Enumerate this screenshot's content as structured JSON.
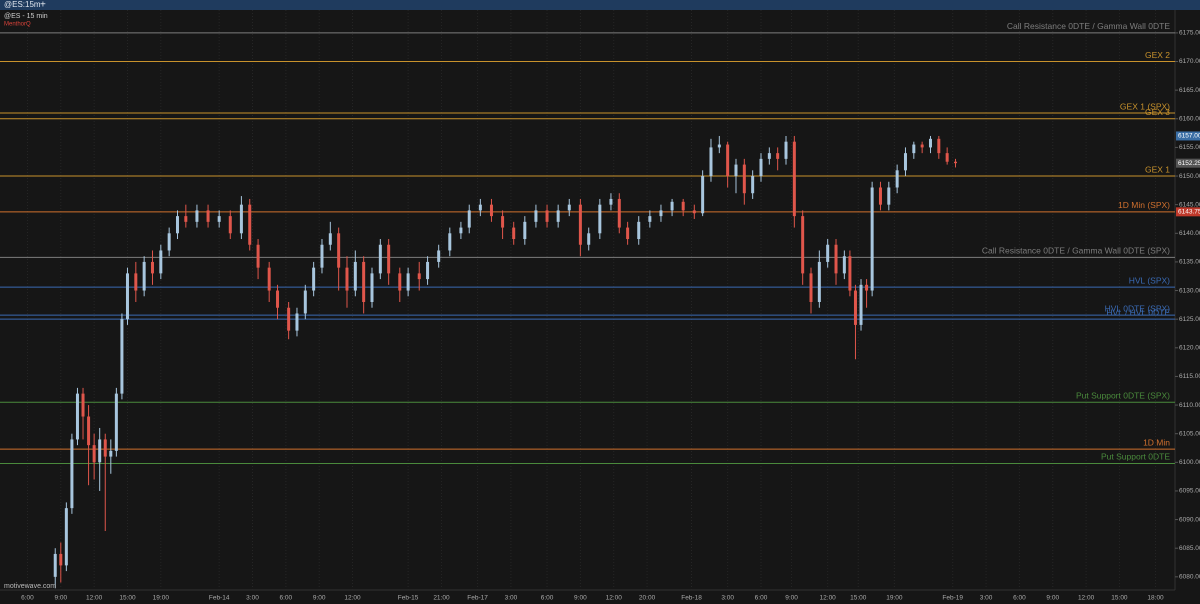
{
  "tab": "@ES:15m",
  "tab_add": "+",
  "chart_data": {
    "type": "candlestick",
    "title": "@ES - 15 min",
    "subtitle": "MenthorQ",
    "watermark": "motivewave.com",
    "up_color": "#a8c6de",
    "down_color": "#e0564b",
    "xlim": [
      0,
      420
    ],
    "ylim": [
      6077.7,
      6179
    ],
    "yticks": [
      {
        "value": 6080,
        "label": "6080.00"
      },
      {
        "value": 6085,
        "label": "6085.00"
      },
      {
        "value": 6090,
        "label": "6090.00"
      },
      {
        "value": 6095,
        "label": "6095.00"
      },
      {
        "value": 6100,
        "label": "6100.00"
      },
      {
        "value": 6105,
        "label": "6105.00"
      },
      {
        "value": 6110,
        "label": "6110.00"
      },
      {
        "value": 6115,
        "label": "6115.00"
      },
      {
        "value": 6120,
        "label": "6120.00"
      },
      {
        "value": 6125,
        "label": "6125.00"
      },
      {
        "value": 6130,
        "label": "6130.00"
      },
      {
        "value": 6135,
        "label": "6135.00"
      },
      {
        "value": 6140,
        "label": "6140.00"
      },
      {
        "value": 6145,
        "label": "6145.00"
      },
      {
        "value": 6150,
        "label": "6150.00"
      },
      {
        "value": 6155,
        "label": "6155.00"
      },
      {
        "value": 6160,
        "label": "6160.00"
      },
      {
        "value": 6165,
        "label": "6165.00"
      },
      {
        "value": 6170,
        "label": "6170.00"
      },
      {
        "value": 6175,
        "label": "6175.00"
      }
    ],
    "xticks": [
      {
        "value": 7,
        "label": "6:00"
      },
      {
        "value": 19,
        "label": "9:00"
      },
      {
        "value": 31,
        "label": "12:00"
      },
      {
        "value": 43,
        "label": "15:00"
      },
      {
        "value": 55,
        "label": "19:00"
      },
      {
        "value": 76,
        "label": "Feb-14"
      },
      {
        "value": 88,
        "label": "3:00"
      },
      {
        "value": 100,
        "label": "6:00"
      },
      {
        "value": 112,
        "label": "9:00"
      },
      {
        "value": 124,
        "label": "12:00"
      },
      {
        "value": 144,
        "label": "Feb-15"
      },
      {
        "value": 156,
        "label": "21:00"
      },
      {
        "value": 169,
        "label": "Feb-17"
      },
      {
        "value": 181,
        "label": "3:00"
      },
      {
        "value": 194,
        "label": "6:00"
      },
      {
        "value": 206,
        "label": "9:00"
      },
      {
        "value": 218,
        "label": "12:00"
      },
      {
        "value": 230,
        "label": "20:00"
      },
      {
        "value": 246,
        "label": "Feb-18"
      },
      {
        "value": 259,
        "label": "3:00"
      },
      {
        "value": 271,
        "label": "6:00"
      },
      {
        "value": 282,
        "label": "9:00"
      },
      {
        "value": 295,
        "label": "12:00"
      },
      {
        "value": 306,
        "label": "15:00"
      },
      {
        "value": 319,
        "label": "19:00"
      },
      {
        "value": 340,
        "label": "Feb-19"
      },
      {
        "value": 352,
        "label": "3:00"
      },
      {
        "value": 364,
        "label": "6:00"
      },
      {
        "value": 376,
        "label": "9:00"
      },
      {
        "value": 388,
        "label": "12:00"
      },
      {
        "value": 400,
        "label": "15:00"
      },
      {
        "value": 413,
        "label": "18:00"
      }
    ],
    "x": [
      17,
      19,
      21,
      23,
      25,
      27,
      29,
      31,
      33,
      35,
      37,
      39,
      41,
      43,
      46,
      49,
      52,
      55,
      58,
      61,
      64,
      68,
      72,
      76,
      80,
      84,
      87,
      90,
      94,
      97,
      101,
      104,
      107,
      110,
      113,
      116,
      119,
      122,
      125,
      128,
      131,
      134,
      137,
      141,
      144,
      148,
      151,
      155,
      159,
      163,
      166,
      170,
      174,
      178,
      182,
      186,
      190,
      194,
      198,
      202,
      206,
      209,
      213,
      217,
      220,
      223,
      227,
      231,
      235,
      239,
      243,
      247,
      250,
      253,
      256,
      259,
      262,
      265,
      268,
      271,
      274,
      277,
      280,
      283,
      286,
      289,
      292,
      295,
      298,
      301,
      303,
      305,
      307,
      309,
      311,
      314,
      317,
      320,
      323,
      326,
      329,
      332,
      335,
      338,
      341
    ],
    "open": [
      6080,
      6084,
      6082,
      6092,
      6104,
      6112,
      6108,
      6103,
      6100,
      6104,
      6101,
      6102,
      6112,
      6125,
      6133,
      6130,
      6135,
      6133,
      6137,
      6140,
      6143,
      6142,
      6144,
      6142,
      6143,
      6140,
      6145,
      6138,
      6134,
      6130,
      6127,
      6123,
      6126,
      6130,
      6134,
      6138,
      6140,
      6134,
      6130,
      6135,
      6128,
      6133,
      6138,
      6133,
      6130,
      6133,
      6132,
      6135,
      6137,
      6140,
      6141,
      6144,
      6145,
      6143,
      6141,
      6139,
      6142,
      6144,
      6142,
      6144,
      6145,
      6138,
      6140,
      6145,
      6146,
      6141,
      6139,
      6142,
      6143,
      6144,
      6145.5,
      6144,
      6143.5,
      6150,
      6155,
      6155.5,
      6150,
      6152,
      6147,
      6150,
      6153,
      6154,
      6153,
      6156,
      6143,
      6133,
      6128,
      6135,
      6138,
      6133,
      6136,
      6130,
      6124,
      6131,
      6130,
      6148,
      6145,
      6148,
      6151,
      6154,
      6155.5,
      6155,
      6156.5,
      6154,
      6152.5
    ],
    "high": [
      6085,
      6086,
      6093,
      6105,
      6113,
      6113,
      6110,
      6105,
      6106,
      6105,
      6104,
      6113,
      6126,
      6134,
      6135,
      6136,
      6137,
      6138,
      6141,
      6144,
      6145,
      6145,
      6145,
      6144,
      6144,
      6146.5,
      6146,
      6139,
      6135,
      6131,
      6128,
      6127,
      6131,
      6135,
      6139,
      6142,
      6141,
      6136,
      6137,
      6136,
      6134,
      6139,
      6139,
      6134,
      6134,
      6135,
      6136,
      6138,
      6141,
      6142,
      6145,
      6146,
      6146,
      6144,
      6142,
      6143,
      6145,
      6145,
      6145,
      6146,
      6146,
      6141,
      6146,
      6147,
      6147,
      6142,
      6143,
      6144,
      6145,
      6146,
      6146,
      6145,
      6151,
      6156.5,
      6157,
      6156,
      6153,
      6153,
      6151,
      6154,
      6155,
      6155,
      6157,
      6157,
      6144,
      6134,
      6137,
      6139,
      6139,
      6137,
      6137,
      6131,
      6132,
      6132,
      6149,
      6149,
      6149,
      6152,
      6155,
      6156,
      6156,
      6157,
      6157,
      6155,
      6153
    ],
    "low": [
      6078,
      6079,
      6081,
      6091,
      6103,
      6104,
      6096,
      6097,
      6095,
      6088,
      6098,
      6101,
      6111,
      6124,
      6128,
      6129,
      6131,
      6132,
      6136,
      6139,
      6141,
      6141,
      6141,
      6141,
      6139,
      6139,
      6137,
      6132,
      6128,
      6125,
      6121.5,
      6122,
      6125,
      6129,
      6133,
      6137,
      6130,
      6127,
      6129,
      6126,
      6127,
      6132,
      6131,
      6128,
      6129,
      6130,
      6131,
      6134,
      6136,
      6139,
      6140,
      6143,
      6142,
      6139,
      6138,
      6138,
      6141,
      6141,
      6141,
      6143,
      6136,
      6137,
      6139,
      6144,
      6140,
      6138,
      6138,
      6141,
      6142,
      6143,
      6143,
      6142.5,
      6143,
      6149,
      6154,
      6148,
      6147,
      6145,
      6146,
      6149,
      6152,
      6151,
      6152,
      6141,
      6131,
      6126,
      6127,
      6134,
      6131,
      6132,
      6129,
      6118,
      6123,
      6127,
      6129,
      6144,
      6144,
      6147,
      6150,
      6153,
      6154,
      6154,
      6153,
      6152,
      6151.5
    ],
    "close": [
      6084,
      6082,
      6092,
      6104,
      6112,
      6108,
      6103,
      6100,
      6104,
      6101,
      6102,
      6112,
      6125,
      6133,
      6130,
      6135,
      6133,
      6137,
      6140,
      6143,
      6142,
      6144,
      6142,
      6143,
      6140,
      6145,
      6138,
      6134,
      6130,
      6127,
      6123,
      6126,
      6130,
      6134,
      6138,
      6140,
      6134,
      6130,
      6135,
      6128,
      6133,
      6138,
      6133,
      6130,
      6133,
      6132,
      6135,
      6137,
      6140,
      6141,
      6144,
      6145,
      6143,
      6141,
      6139,
      6142,
      6144,
      6142,
      6144,
      6145,
      6138,
      6140,
      6145,
      6146,
      6141,
      6139,
      6142,
      6143,
      6144,
      6145.5,
      6144,
      6143.5,
      6150,
      6155,
      6155.5,
      6150,
      6152,
      6147,
      6150,
      6153,
      6154,
      6153,
      6156,
      6143,
      6133,
      6128,
      6135,
      6138,
      6133,
      6136,
      6130,
      6124,
      6131,
      6130,
      6148,
      6145,
      6148,
      6151,
      6154,
      6155.5,
      6155,
      6156.5,
      6154,
      6152.5,
      6152.25
    ],
    "levels": [
      {
        "label": "Call Resistance 0DTE / Gamma Wall 0DTE",
        "value": 6175,
        "color": "#7d7d7d"
      },
      {
        "label": "GEX 2",
        "value": 6170,
        "color": "#c8922c"
      },
      {
        "label": "GEX 1 (SPX)",
        "value": 6161,
        "color": "#c8922c"
      },
      {
        "label": "GEX 3",
        "value": 6160,
        "color": "#c8922c"
      },
      {
        "label": "GEX 1",
        "value": 6150,
        "color": "#c8922c"
      },
      {
        "label": "1D Min (SPX)",
        "value": 6143.75,
        "color": "#d0702e"
      },
      {
        "label": "Call Resistance 0DTE / Gamma Wall 0DTE (SPX)",
        "value": 6135.8,
        "color": "#7d7d7d"
      },
      {
        "label": "HVL (SPX)",
        "value": 6130.6,
        "color": "#3a6ab4"
      },
      {
        "label": "HVL 0DTE (SPX)",
        "value": 6125.7,
        "color": "#3a6ab4"
      },
      {
        "label": "HVL / HVL 0DTE",
        "value": 6125,
        "color": "#3a6ab4"
      },
      {
        "label": "Put Support 0DTE (SPX)",
        "value": 6110.5,
        "color": "#4a8a3c"
      },
      {
        "label": "1D Min",
        "value": 6102.3,
        "color": "#d0702e"
      },
      {
        "label": "Put Support 0DTE",
        "value": 6099.8,
        "color": "#4a8a3c"
      }
    ],
    "price_labels": [
      {
        "value": 6157,
        "label": "6157.00",
        "color": "#3a6ea5"
      },
      {
        "value": 6152.25,
        "label": "6152.25",
        "color": "#555555"
      },
      {
        "value": 6143.75,
        "label": "6143.75",
        "color": "#c0392b"
      }
    ]
  }
}
